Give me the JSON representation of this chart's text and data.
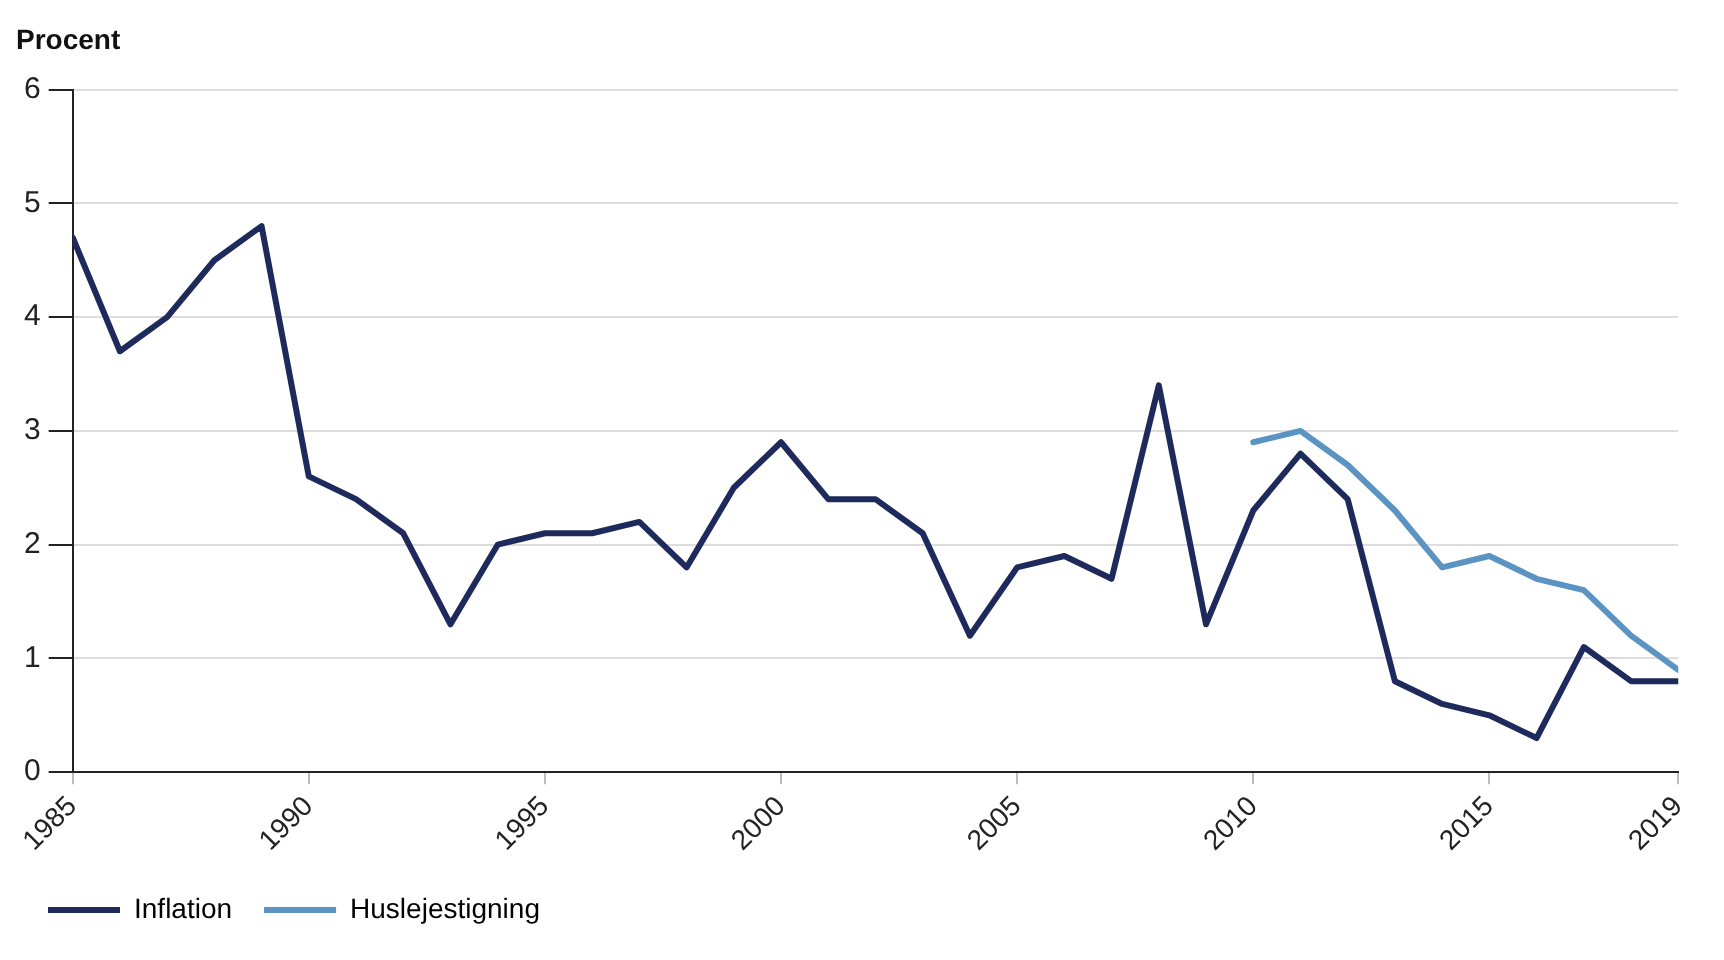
{
  "chart_data": {
    "type": "line",
    "ylabel": "Procent",
    "x": [
      1985,
      1986,
      1987,
      1988,
      1989,
      1990,
      1991,
      1992,
      1993,
      1994,
      1995,
      1996,
      1997,
      1998,
      1999,
      2000,
      2001,
      2002,
      2003,
      2004,
      2005,
      2006,
      2007,
      2008,
      2009,
      2010,
      2011,
      2012,
      2013,
      2014,
      2015,
      2016,
      2017,
      2018,
      2019
    ],
    "series": [
      {
        "name": "Inflation",
        "color": "#1f2a5c",
        "values": [
          4.7,
          3.7,
          4.0,
          4.5,
          4.8,
          2.6,
          2.4,
          2.1,
          1.3,
          2.0,
          2.1,
          2.1,
          2.2,
          1.8,
          2.5,
          2.9,
          2.4,
          2.4,
          2.1,
          1.2,
          1.8,
          1.9,
          1.7,
          3.4,
          1.3,
          2.3,
          2.8,
          2.4,
          0.8,
          0.6,
          0.5,
          0.3,
          1.1,
          0.8,
          0.8
        ]
      },
      {
        "name": "Huslejestigning",
        "color": "#5b93c2",
        "x": [
          2010,
          2011,
          2012,
          2013,
          2014,
          2015,
          2016,
          2017,
          2018,
          2019
        ],
        "values": [
          2.9,
          3.0,
          2.7,
          2.3,
          1.8,
          1.9,
          1.7,
          1.6,
          1.2,
          0.9
        ]
      }
    ],
    "xlim": [
      1985,
      2019
    ],
    "xticks": [
      1985,
      1990,
      1995,
      2000,
      2005,
      2010,
      2015,
      2019
    ],
    "ylim": [
      0,
      6
    ],
    "yticks": [
      0,
      1,
      2,
      3,
      4,
      5,
      6
    ],
    "grid": "y",
    "legend": "bottom",
    "marker": "none",
    "line_style": "solid"
  }
}
